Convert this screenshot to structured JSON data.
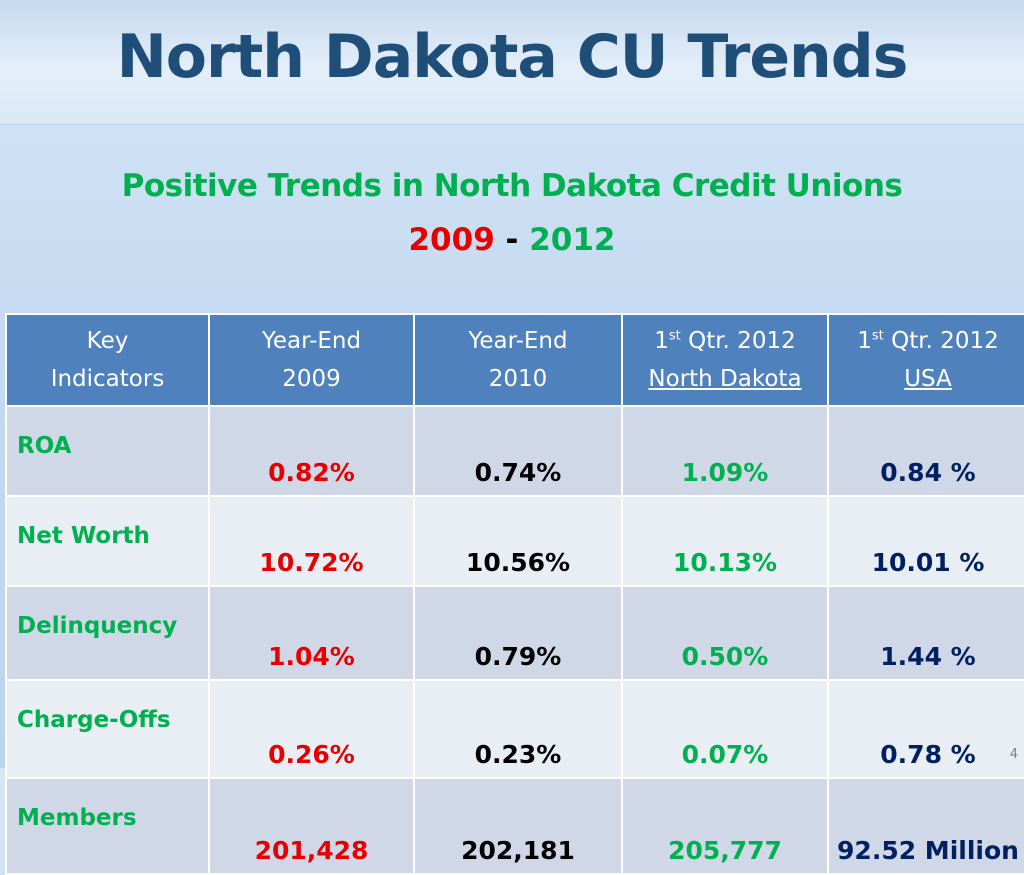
{
  "slide": {
    "title": "North Dakota CU Trends",
    "subtitle": "Positive Trends in North Dakota Credit Unions",
    "year_start": "2009",
    "year_sep": " - ",
    "year_end": "2012",
    "page_number": "4"
  },
  "table": {
    "headers": {
      "key": [
        "Key",
        "Indicators"
      ],
      "ye2009": [
        "Year-End",
        "2009"
      ],
      "ye2010": [
        "Year-End",
        "2010"
      ],
      "q1nd": {
        "num": "1",
        "sup": "st",
        "rest": " Qtr. 2012",
        "line2": "North Dakota"
      },
      "q1usa": {
        "num": "1",
        "sup": "st",
        "rest": " Qtr. 2012",
        "line2": "USA"
      }
    },
    "rows": [
      {
        "label": "ROA",
        "ye2009": "0.82%",
        "ye2010": "0.74%",
        "q1nd": "1.09%",
        "q1usa": "0.84 %"
      },
      {
        "label": "Net Worth",
        "ye2009": "10.72%",
        "ye2010": "10.56%",
        "q1nd": "10.13%",
        "q1usa": "10.01 %"
      },
      {
        "label": "Delinquency",
        "ye2009": "1.04%",
        "ye2010": "0.79%",
        "q1nd": "0.50%",
        "q1usa": "1.44 %"
      },
      {
        "label": "Charge-Offs",
        "ye2009": "0.26%",
        "ye2010": "0.23%",
        "q1nd": "0.07%",
        "q1usa": "0.78 %"
      },
      {
        "label": "Members",
        "ye2009": "201,428",
        "ye2010": "202,181",
        "q1nd": "205,777",
        "q1usa": "92.52 Million"
      }
    ]
  },
  "colors": {
    "title": "#1f4e79",
    "subtitle_green": "#00b050",
    "accent_red": "#e60000",
    "header_blue": "#4f81bd",
    "usa_navy": "#002060"
  }
}
